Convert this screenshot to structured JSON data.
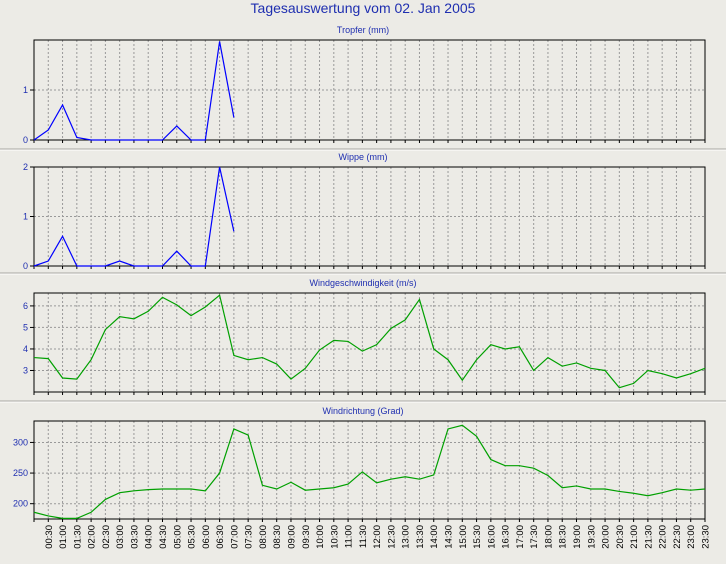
{
  "title": "Tagesauswertung vom 02. Jan 2005",
  "colors": {
    "background": "#ecebe6",
    "title": "#1f2fb0",
    "rain_line": "#0000ff",
    "wind_line": "#00a000",
    "grid": "#999999"
  },
  "chart_data": [
    {
      "type": "line",
      "title": "Tropfer (mm)",
      "ylim": [
        0,
        2
      ],
      "yticks": [
        0,
        1
      ],
      "values": [
        0,
        0.2,
        0.7,
        0.05,
        0,
        0,
        0,
        0,
        0,
        0,
        0.28,
        0,
        0,
        1.97,
        0.45,
        0,
        0,
        0,
        0,
        0,
        0,
        0,
        0,
        0,
        0,
        0,
        0,
        0,
        0,
        0,
        0,
        0,
        0,
        0,
        0,
        0,
        0,
        0,
        0,
        0,
        0,
        0,
        0,
        0,
        0,
        0,
        0,
        0
      ],
      "line_end_index": 14
    },
    {
      "type": "line",
      "title": "Wippe (mm)",
      "ylim": [
        0,
        2
      ],
      "yticks": [
        0,
        1,
        2
      ],
      "values": [
        0,
        0.1,
        0.6,
        0,
        0,
        0,
        0.1,
        0,
        0,
        0,
        0.3,
        0,
        0,
        2.0,
        0.7,
        0,
        0,
        0,
        0,
        0,
        0,
        0,
        0,
        0,
        0,
        0,
        0,
        0,
        0,
        0,
        0,
        0,
        0,
        0,
        0,
        0,
        0,
        0,
        0,
        0,
        0,
        0,
        0,
        0,
        0,
        0,
        0,
        0
      ],
      "line_end_index": 14
    },
    {
      "type": "line",
      "title": "Windgeschwindigkeit (m/s)",
      "ylim": [
        2.0,
        6.6
      ],
      "yticks": [
        3,
        4,
        5,
        6
      ],
      "values": [
        3.6,
        3.55,
        2.65,
        2.6,
        3.5,
        4.9,
        5.5,
        5.4,
        5.75,
        6.4,
        6.05,
        5.55,
        5.95,
        6.5,
        3.7,
        3.5,
        3.6,
        3.3,
        2.6,
        3.1,
        3.95,
        4.4,
        4.35,
        3.9,
        4.2,
        4.95,
        5.35,
        6.3,
        4.0,
        3.5,
        2.55,
        3.5,
        4.2,
        4.0,
        4.1,
        3.0,
        3.6,
        3.2,
        3.35,
        3.1,
        3.0,
        2.2,
        2.4,
        3.0,
        2.85,
        2.65,
        2.85,
        3.1
      ]
    },
    {
      "type": "line",
      "title": "Windrichtung (Grad)",
      "ylim": [
        175,
        335
      ],
      "yticks": [
        200,
        250,
        300
      ],
      "values": [
        186,
        180,
        176,
        176,
        186,
        207,
        218,
        221,
        223,
        224,
        224,
        224,
        221,
        250,
        322,
        312,
        230,
        224,
        235,
        222,
        224,
        226,
        232,
        252,
        234,
        240,
        244,
        240,
        247,
        322,
        328,
        310,
        272,
        262,
        262,
        258,
        246,
        226,
        229,
        224,
        224,
        220,
        217,
        213,
        218,
        224,
        222,
        224
      ]
    }
  ],
  "x_labels": [
    "00:30",
    "01:00",
    "01:30",
    "02:00",
    "02:30",
    "03:00",
    "03:30",
    "04:00",
    "04:30",
    "05:00",
    "05:30",
    "06:00",
    "06:30",
    "07:00",
    "07:30",
    "08:00",
    "08:30",
    "09:00",
    "09:30",
    "10:00",
    "10:30",
    "11:00",
    "11:30",
    "12:00",
    "12:30",
    "13:00",
    "13:30",
    "14:00",
    "14:30",
    "15:00",
    "15:30",
    "16:00",
    "16:30",
    "17:00",
    "17:30",
    "18:00",
    "18:30",
    "19:00",
    "19:30",
    "20:00",
    "20:30",
    "21:00",
    "21:30",
    "22:00",
    "22:30",
    "23:00",
    "23:30"
  ]
}
